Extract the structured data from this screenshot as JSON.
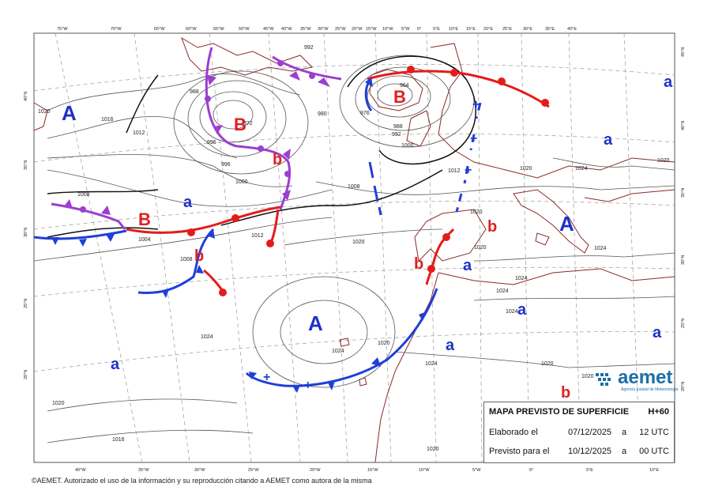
{
  "info": {
    "title": "MAPA PREVISTO DE SUPERFICIE",
    "horizon": "H+60",
    "elaborado_label": "Elaborado el",
    "elaborado_date": "07/12/2025",
    "a1": "a",
    "elaborado_time": "12 UTC",
    "previsto_label": "Previsto para el",
    "previsto_date": "10/12/2025",
    "a2": "a",
    "previsto_time": "00 UTC"
  },
  "footer": "©AEMET. Autorizado el uso de la información y su reproducción citando a AEMET como autora de la misma",
  "logo": {
    "name": "aemet",
    "subtitle": "Agencia Estatal de Meteorología"
  },
  "colors": {
    "front_blue": "#1f3fd8",
    "front_red": "#e51b1b",
    "occluded": "#9b3fd0",
    "coast": "#8b2a2a",
    "isobar": "#555555",
    "high_low_blue": "#1e32c8",
    "low_red": "#e02020"
  },
  "top_ticks": [
    "75°W",
    "70°W",
    "65°W",
    "60°W",
    "55°W",
    "50°W",
    "45°W",
    "40°W",
    "35°W",
    "30°W",
    "25°W",
    "20°W",
    "15°W",
    "10°W",
    "5°W",
    "0°",
    "5°E",
    "10°E",
    "15°E",
    "20°E",
    "25°E",
    "30°E",
    "35°E",
    "40°E"
  ],
  "bottom_ticks": [
    "40°W",
    "35°W",
    "30°W",
    "25°W",
    "20°W",
    "15°W",
    "10°W",
    "5°W",
    "0°",
    "5°E",
    "10°E"
  ],
  "left_ticks": [
    "40°N",
    "35°N",
    "30°N",
    "25°N",
    "20°N"
  ],
  "right_ticks": [
    "45°N",
    "40°N",
    "35°N",
    "30°N",
    "25°N",
    "20°N"
  ],
  "pressure_centers": [
    {
      "label": "A",
      "kind": "high"
    },
    {
      "label": "A",
      "kind": "high"
    },
    {
      "label": "A",
      "kind": "high"
    },
    {
      "label": "B",
      "kind": "low"
    },
    {
      "label": "B",
      "kind": "low"
    },
    {
      "label": "B",
      "kind": "low"
    },
    {
      "label": "a",
      "kind": "secondary-high"
    },
    {
      "label": "a",
      "kind": "secondary-high"
    },
    {
      "label": "a",
      "kind": "secondary-high"
    },
    {
      "label": "a",
      "kind": "secondary-high"
    },
    {
      "label": "a",
      "kind": "secondary-high"
    },
    {
      "label": "a",
      "kind": "secondary-high"
    },
    {
      "label": "a",
      "kind": "secondary-high"
    },
    {
      "label": "b",
      "kind": "secondary-low"
    },
    {
      "label": "b",
      "kind": "secondary-low"
    },
    {
      "label": "b",
      "kind": "secondary-low"
    },
    {
      "label": "b",
      "kind": "secondary-low"
    },
    {
      "label": "b",
      "kind": "secondary-low"
    }
  ],
  "isobar_labels": [
    "1020",
    "1016",
    "1012",
    "1012",
    "1008",
    "1004",
    "1000",
    "996",
    "992",
    "988",
    "980",
    "976",
    "972",
    "964",
    "1008",
    "1012",
    "1020",
    "1024",
    "1024",
    "1020",
    "1024",
    "1020",
    "1016",
    "1020",
    "1024",
    "1024",
    "1020",
    "1020",
    "1024",
    "1024",
    "1020",
    "1020",
    "1024",
    "1020",
    "1020",
    "1000",
    "988",
    "992",
    "996",
    "1008"
  ]
}
